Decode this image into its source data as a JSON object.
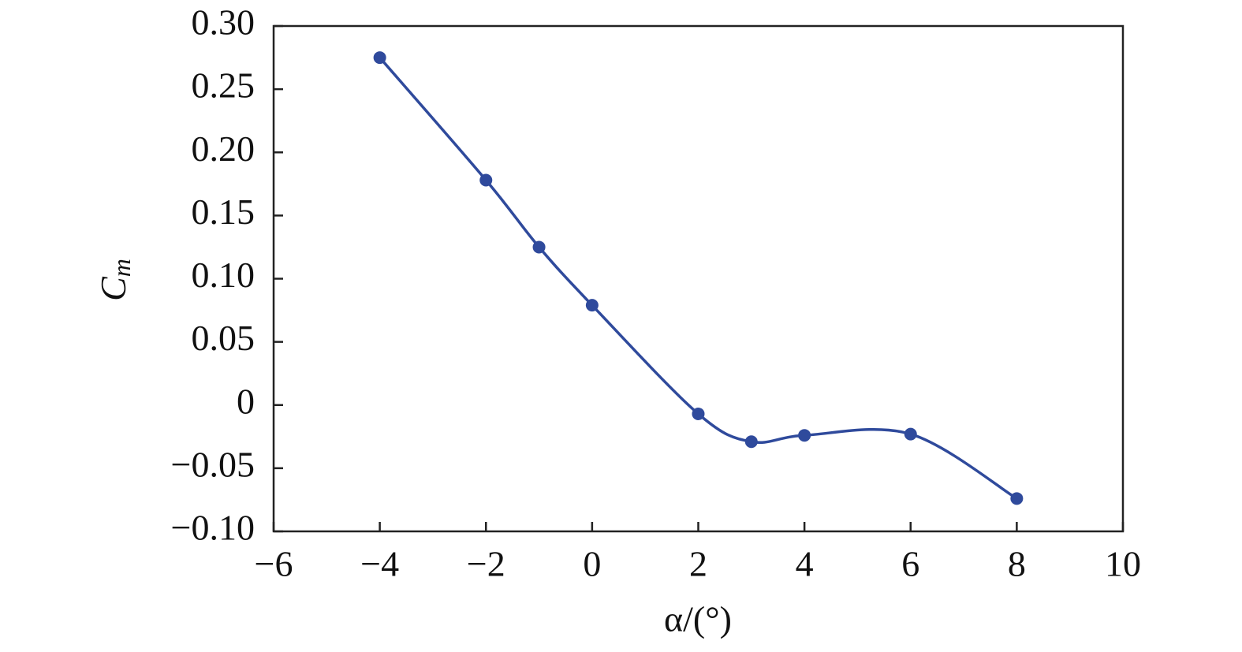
{
  "chart_data": {
    "type": "line",
    "xlabel": "α/(°)",
    "ylabel": {
      "main": "C",
      "sub": "m"
    },
    "x": [
      -4,
      -2,
      -1,
      0,
      2,
      3,
      4,
      6,
      8
    ],
    "series": [
      {
        "color": "#2f4a9c",
        "values": [
          0.275,
          0.178,
          0.125,
          0.079,
          -0.007,
          -0.029,
          -0.024,
          -0.023,
          -0.074
        ]
      }
    ],
    "xlim": [
      -6,
      10
    ],
    "xticks": [
      {
        "value": -6,
        "label": "−6"
      },
      {
        "value": -4,
        "label": "−4"
      },
      {
        "value": -2,
        "label": "−2"
      },
      0,
      2,
      4,
      6,
      8,
      10
    ],
    "ylim": [
      -0.1,
      0.3
    ],
    "yticks": [
      {
        "value": -0.1,
        "label": "−0.10"
      },
      {
        "value": -0.05,
        "label": "−0.05"
      },
      0,
      0.05,
      {
        "value": 0.1,
        "label": "0.10"
      },
      0.15,
      {
        "value": 0.2,
        "label": "0.20"
      },
      0.25,
      {
        "value": 0.3,
        "label": "0.30"
      }
    ],
    "grid": false
  }
}
